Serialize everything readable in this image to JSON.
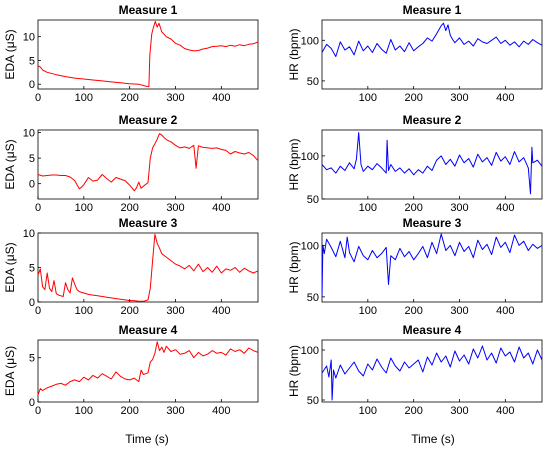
{
  "colors": {
    "eda": "#ff0000",
    "hr": "#0000ff",
    "axis": "#000000"
  },
  "figure": {
    "xlabel": "Time (s)"
  },
  "chart_data": [
    {
      "type": "line",
      "title": "Measure 1",
      "ylabel": "EDA (μS)",
      "xlabel": "",
      "xlim": [
        0,
        480
      ],
      "ylim": [
        -1,
        13.5
      ],
      "xticks": [
        0,
        100,
        200,
        300,
        400
      ],
      "yticks": [
        0,
        5,
        10
      ],
      "color": "#ff0000",
      "grid": false,
      "series": [
        {
          "x": [
            0,
            5,
            10,
            20,
            40,
            60,
            80,
            100,
            120,
            140,
            160,
            180,
            200,
            220,
            235,
            242,
            244,
            248,
            252,
            256,
            260,
            264,
            270,
            280,
            290,
            300,
            310,
            320,
            330,
            340,
            350,
            360,
            370,
            380,
            390,
            400,
            410,
            420,
            430,
            440,
            450,
            460,
            470,
            480
          ],
          "y": [
            3.9,
            3.6,
            3.0,
            2.5,
            2.0,
            1.6,
            1.3,
            1.1,
            0.9,
            0.7,
            0.5,
            0.3,
            0.1,
            0.0,
            -0.4,
            -0.5,
            6.0,
            10.5,
            12.0,
            13.2,
            12.0,
            12.8,
            11.0,
            10.0,
            9.5,
            8.6,
            8.2,
            7.5,
            7.2,
            7.0,
            7.1,
            7.4,
            7.6,
            7.9,
            8.0,
            8.1,
            7.9,
            8.2,
            8.0,
            8.3,
            8.1,
            8.4,
            8.5,
            8.9
          ]
        }
      ]
    },
    {
      "type": "line",
      "title": "Measure 1",
      "ylabel": "HR (bpm)",
      "xlabel": "",
      "xlim": [
        0,
        480
      ],
      "ylim": [
        40,
        125
      ],
      "xticks": [
        100,
        200,
        300,
        400
      ],
      "yticks": [
        50,
        100
      ],
      "color": "#0000ff",
      "grid": false,
      "series": [
        {
          "x": [
            0,
            10,
            20,
            30,
            40,
            50,
            60,
            70,
            80,
            90,
            100,
            110,
            120,
            130,
            140,
            150,
            160,
            170,
            180,
            190,
            200,
            210,
            220,
            230,
            240,
            250,
            255,
            260,
            265,
            270,
            275,
            280,
            285,
            290,
            300,
            310,
            320,
            330,
            340,
            350,
            360,
            370,
            380,
            390,
            400,
            410,
            420,
            430,
            440,
            450,
            460,
            470,
            480
          ],
          "y": [
            85,
            95,
            90,
            80,
            98,
            88,
            92,
            82,
            99,
            87,
            93,
            85,
            96,
            89,
            84,
            101,
            88,
            93,
            86,
            97,
            87,
            92,
            96,
            103,
            99,
            108,
            113,
            118,
            121,
            112,
            119,
            106,
            101,
            97,
            103,
            95,
            99,
            93,
            102,
            98,
            96,
            100,
            104,
            96,
            100,
            94,
            98,
            92,
            99,
            95,
            101,
            97,
            94
          ]
        }
      ]
    },
    {
      "type": "line",
      "title": "Measure 2",
      "ylabel": "EDA (μS)",
      "xlabel": "",
      "xlim": [
        0,
        480
      ],
      "ylim": [
        -3,
        10.5
      ],
      "xticks": [
        0,
        100,
        200,
        300,
        400
      ],
      "yticks": [
        0,
        5,
        10
      ],
      "color": "#ff0000",
      "grid": false,
      "series": [
        {
          "x": [
            0,
            10,
            20,
            30,
            40,
            50,
            60,
            70,
            80,
            90,
            95,
            100,
            110,
            120,
            130,
            140,
            150,
            160,
            170,
            180,
            190,
            200,
            205,
            210,
            215,
            220,
            225,
            230,
            240,
            245,
            250,
            255,
            260,
            265,
            270,
            280,
            290,
            300,
            310,
            320,
            330,
            340,
            345,
            350,
            360,
            370,
            380,
            390,
            400,
            410,
            420,
            430,
            440,
            450,
            460,
            470,
            480
          ],
          "y": [
            1.8,
            1.5,
            1.6,
            1.7,
            1.7,
            1.6,
            1.6,
            1.3,
            0.6,
            -1.0,
            -0.7,
            -0.2,
            1.2,
            0.5,
            0.7,
            1.8,
            1.0,
            0.3,
            1.2,
            0.9,
            0.6,
            -0.3,
            -0.8,
            -1.4,
            -0.8,
            0.3,
            -0.9,
            -0.5,
            0.2,
            5.0,
            7.0,
            7.8,
            8.7,
            9.8,
            9.5,
            8.6,
            8.2,
            7.5,
            7.0,
            7.2,
            6.9,
            7.5,
            3.0,
            7.4,
            7.1,
            7.0,
            6.9,
            7.0,
            6.7,
            6.5,
            5.8,
            6.3,
            6.0,
            5.8,
            6.1,
            5.5,
            4.5
          ]
        }
      ]
    },
    {
      "type": "line",
      "title": "Measure 2",
      "ylabel": "HR (bpm)",
      "xlabel": "",
      "xlim": [
        0,
        480
      ],
      "ylim": [
        50,
        130
      ],
      "xticks": [
        100,
        200,
        300,
        400
      ],
      "yticks": [
        50,
        100
      ],
      "color": "#0000ff",
      "grid": false,
      "series": [
        {
          "x": [
            0,
            10,
            20,
            30,
            40,
            50,
            60,
            70,
            75,
            80,
            85,
            90,
            100,
            110,
            120,
            130,
            140,
            142,
            145,
            150,
            160,
            170,
            180,
            190,
            200,
            210,
            220,
            230,
            240,
            250,
            260,
            270,
            280,
            290,
            300,
            310,
            320,
            330,
            340,
            350,
            360,
            370,
            380,
            390,
            400,
            410,
            420,
            430,
            440,
            450,
            455,
            458,
            460,
            470,
            480
          ],
          "y": [
            90,
            84,
            86,
            80,
            88,
            83,
            92,
            85,
            96,
            127,
            90,
            82,
            88,
            84,
            91,
            86,
            80,
            118,
            83,
            90,
            82,
            86,
            80,
            85,
            78,
            84,
            80,
            88,
            83,
            95,
            100,
            90,
            96,
            88,
            101,
            92,
            97,
            87,
            102,
            93,
            98,
            89,
            104,
            94,
            99,
            90,
            105,
            93,
            98,
            86,
            56,
            110,
            92,
            95,
            88
          ]
        }
      ]
    },
    {
      "type": "line",
      "title": "Measure 3",
      "ylabel": "EDA (μS)",
      "xlabel": "",
      "xlim": [
        0,
        480
      ],
      "ylim": [
        0,
        10
      ],
      "xticks": [
        0,
        100,
        200,
        300,
        400
      ],
      "yticks": [
        0,
        5,
        10
      ],
      "color": "#ff0000",
      "grid": false,
      "series": [
        {
          "x": [
            0,
            5,
            10,
            15,
            20,
            25,
            30,
            35,
            40,
            45,
            50,
            55,
            60,
            65,
            70,
            75,
            80,
            85,
            90,
            100,
            110,
            120,
            130,
            140,
            150,
            160,
            170,
            180,
            190,
            200,
            210,
            220,
            230,
            240,
            245,
            250,
            255,
            260,
            265,
            270,
            280,
            290,
            300,
            310,
            320,
            330,
            340,
            350,
            360,
            370,
            380,
            390,
            400,
            410,
            420,
            430,
            440,
            450,
            460,
            470,
            480
          ],
          "y": [
            3.9,
            4.8,
            2.2,
            1.8,
            4.2,
            2.0,
            1.5,
            3.1,
            1.2,
            1.0,
            0.9,
            0.8,
            2.8,
            1.8,
            1.3,
            3.5,
            2.6,
            1.8,
            1.5,
            1.3,
            1.1,
            1.0,
            0.9,
            0.8,
            0.7,
            0.6,
            0.5,
            0.4,
            0.3,
            0.2,
            0.2,
            0.1,
            0.1,
            0.3,
            2.0,
            6.0,
            9.8,
            8.5,
            7.8,
            7.0,
            6.5,
            6.0,
            5.5,
            5.2,
            4.8,
            5.3,
            4.5,
            5.5,
            4.4,
            5.0,
            4.3,
            5.2,
            4.2,
            4.8,
            4.6,
            5.0,
            4.3,
            4.9,
            4.5,
            4.2,
            4.5
          ]
        }
      ]
    },
    {
      "type": "line",
      "title": "Measure 3",
      "ylabel": "HR (bpm)",
      "xlabel": "",
      "xlim": [
        0,
        480
      ],
      "ylim": [
        45,
        112
      ],
      "xticks": [
        100,
        200,
        300,
        400
      ],
      "yticks": [
        50,
        100
      ],
      "color": "#0000ff",
      "grid": false,
      "series": [
        {
          "x": [
            0,
            2,
            5,
            10,
            20,
            30,
            40,
            50,
            55,
            60,
            70,
            80,
            90,
            100,
            110,
            120,
            130,
            140,
            145,
            150,
            160,
            170,
            180,
            190,
            200,
            210,
            220,
            230,
            240,
            250,
            260,
            270,
            280,
            290,
            300,
            310,
            320,
            330,
            340,
            350,
            360,
            370,
            380,
            390,
            400,
            410,
            420,
            430,
            440,
            450,
            460,
            470,
            480
          ],
          "y": [
            50,
            100,
            92,
            106,
            98,
            89,
            104,
            88,
            108,
            93,
            84,
            99,
            90,
            86,
            95,
            88,
            92,
            98,
            62,
            90,
            86,
            97,
            89,
            94,
            86,
            92,
            99,
            88,
            103,
            92,
            111,
            95,
            100,
            90,
            103,
            94,
            99,
            88,
            105,
            96,
            101,
            91,
            108,
            98,
            103,
            93,
            110,
            100,
            104,
            95,
            101,
            97,
            100
          ]
        }
      ]
    },
    {
      "type": "line",
      "title": "Measure 4",
      "ylabel": "EDA (μS)",
      "xlabel": "Time (s)",
      "xlim": [
        0,
        480
      ],
      "ylim": [
        0,
        7
      ],
      "xticks": [
        0,
        100,
        200,
        300,
        400
      ],
      "yticks": [
        0,
        5
      ],
      "color": "#ff0000",
      "grid": false,
      "series": [
        {
          "x": [
            0,
            5,
            10,
            20,
            30,
            40,
            50,
            60,
            70,
            80,
            90,
            100,
            110,
            120,
            130,
            140,
            150,
            160,
            170,
            180,
            190,
            200,
            210,
            220,
            225,
            230,
            235,
            240,
            245,
            250,
            255,
            260,
            265,
            270,
            275,
            280,
            290,
            300,
            310,
            320,
            330,
            340,
            350,
            360,
            370,
            380,
            390,
            400,
            410,
            420,
            430,
            440,
            450,
            460,
            470,
            480
          ],
          "y": [
            0.8,
            1.5,
            1.3,
            1.6,
            1.8,
            2.0,
            2.1,
            1.9,
            2.3,
            2.5,
            2.3,
            2.8,
            2.5,
            3.0,
            2.7,
            3.2,
            2.9,
            2.6,
            3.4,
            2.9,
            2.6,
            2.5,
            2.7,
            2.3,
            3.6,
            3.1,
            3.2,
            3.3,
            4.5,
            4.8,
            5.5,
            6.8,
            5.8,
            6.2,
            5.6,
            6.3,
            5.7,
            5.9,
            5.4,
            5.5,
            5.8,
            5.0,
            5.6,
            5.2,
            5.4,
            5.8,
            5.5,
            5.6,
            5.3,
            6.0,
            5.7,
            5.9,
            5.5,
            6.1,
            5.8,
            5.6
          ]
        }
      ]
    },
    {
      "type": "line",
      "title": "Measure 4",
      "ylabel": "HR (bpm)",
      "xlabel": "Time (s)",
      "xlim": [
        0,
        480
      ],
      "ylim": [
        48,
        110
      ],
      "xticks": [
        100,
        200,
        300,
        400
      ],
      "yticks": [
        50,
        100
      ],
      "color": "#0000ff",
      "grid": false,
      "series": [
        {
          "x": [
            0,
            10,
            15,
            20,
            22,
            25,
            30,
            40,
            50,
            60,
            70,
            80,
            90,
            100,
            110,
            120,
            130,
            140,
            150,
            160,
            170,
            180,
            190,
            200,
            210,
            220,
            230,
            240,
            250,
            260,
            270,
            280,
            290,
            300,
            310,
            320,
            330,
            340,
            350,
            360,
            370,
            380,
            390,
            400,
            410,
            420,
            430,
            440,
            450,
            460,
            470,
            480
          ],
          "y": [
            77,
            84,
            73,
            90,
            50,
            80,
            72,
            85,
            76,
            82,
            88,
            79,
            74,
            86,
            80,
            91,
            83,
            77,
            92,
            84,
            79,
            88,
            82,
            86,
            90,
            78,
            93,
            85,
            97,
            88,
            94,
            83,
            99,
            89,
            95,
            86,
            101,
            92,
            104,
            90,
            97,
            87,
            102,
            94,
            98,
            88,
            103,
            92,
            97,
            86,
            100,
            90
          ]
        }
      ]
    }
  ]
}
